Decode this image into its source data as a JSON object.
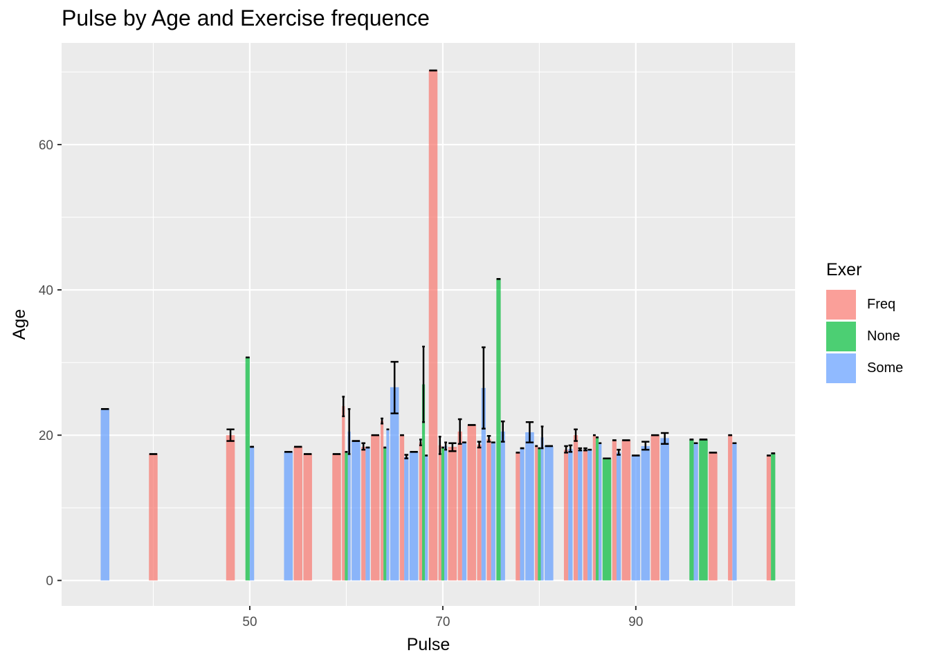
{
  "chart_data": {
    "type": "bar",
    "title": "Pulse by Age and Exercise frequence",
    "xlabel": "Pulse",
    "ylabel": "Age",
    "xlim": [
      30.5,
      106.5
    ],
    "ylim": [
      -3.5,
      74
    ],
    "x_ticks": [
      50,
      70,
      90
    ],
    "y_ticks": [
      0,
      20,
      40,
      60
    ],
    "grid": true,
    "legend": {
      "title": "Exer",
      "position": "right"
    },
    "series": [
      {
        "name": "Freq",
        "color": "#F8766D",
        "points": [
          {
            "x": 40,
            "y": 17.4,
            "err": [
              17.4,
              17.4
            ]
          },
          {
            "x": 48,
            "y": 20.0,
            "err": [
              19.2,
              20.8
            ]
          },
          {
            "x": 55,
            "y": 18.4,
            "err": [
              18.4,
              18.4
            ]
          },
          {
            "x": 56,
            "y": 17.4,
            "err": [
              17.4,
              17.4
            ]
          },
          {
            "x": 59,
            "y": 17.4,
            "err": [
              17.4,
              17.4
            ]
          },
          {
            "x": 60,
            "y": 24.0,
            "err": [
              22.6,
              25.3
            ]
          },
          {
            "x": 62,
            "y": 18.4,
            "err": [
              18.0,
              18.9
            ]
          },
          {
            "x": 63,
            "y": 20.0,
            "err": [
              20.0,
              20.0
            ]
          },
          {
            "x": 64,
            "y": 22.0,
            "err": [
              21.6,
              22.3
            ]
          },
          {
            "x": 66,
            "y": 20.0,
            "err": [
              20.0,
              20.0
            ]
          },
          {
            "x": 68,
            "y": 19.0,
            "err": [
              18.6,
              19.4
            ]
          },
          {
            "x": 69,
            "y": 70.2,
            "err": [
              70.2,
              70.2
            ]
          },
          {
            "x": 70,
            "y": 18.6,
            "err": [
              17.4,
              19.8
            ]
          },
          {
            "x": 71,
            "y": 18.4,
            "err": [
              17.8,
              18.9
            ]
          },
          {
            "x": 72,
            "y": 20.5,
            "err": [
              18.8,
              22.2
            ]
          },
          {
            "x": 73,
            "y": 21.4,
            "err": [
              21.4,
              21.4
            ]
          },
          {
            "x": 74,
            "y": 18.7,
            "err": [
              18.3,
              19.1
            ]
          },
          {
            "x": 75,
            "y": 19.5,
            "err": [
              19.1,
              19.9
            ]
          },
          {
            "x": 78,
            "y": 17.6,
            "err": [
              17.6,
              17.6
            ]
          },
          {
            "x": 80,
            "y": 18.5,
            "err": [
              18.5,
              18.5
            ]
          },
          {
            "x": 83,
            "y": 18.0,
            "err": [
              17.6,
              18.5
            ]
          },
          {
            "x": 84,
            "y": 20.0,
            "err": [
              19.2,
              20.8
            ]
          },
          {
            "x": 85,
            "y": 18.0,
            "err": [
              17.9,
              18.2
            ]
          },
          {
            "x": 86,
            "y": 20.0,
            "err": [
              20.0,
              20.0
            ]
          },
          {
            "x": 88,
            "y": 19.3,
            "err": [
              19.3,
              19.3
            ]
          },
          {
            "x": 89,
            "y": 19.3,
            "err": [
              19.3,
              19.3
            ]
          },
          {
            "x": 92,
            "y": 20.0,
            "err": [
              20.0,
              20.0
            ]
          },
          {
            "x": 98,
            "y": 17.6,
            "err": [
              17.6,
              17.6
            ]
          },
          {
            "x": 100,
            "y": 20.0,
            "err": [
              20.0,
              20.0
            ]
          },
          {
            "x": 104,
            "y": 17.2,
            "err": [
              17.2,
              17.2
            ]
          }
        ]
      },
      {
        "name": "None",
        "color": "#00BA38",
        "points": [
          {
            "x": 50,
            "y": 30.7,
            "err": [
              30.7,
              30.7
            ]
          },
          {
            "x": 60,
            "y": 17.7,
            "err": [
              17.7,
              17.7
            ]
          },
          {
            "x": 64,
            "y": 18.3,
            "err": [
              18.3,
              18.3
            ]
          },
          {
            "x": 68,
            "y": 27.0,
            "err": [
              21.8,
              32.2
            ]
          },
          {
            "x": 70,
            "y": 18.3,
            "err": [
              18.3,
              18.3
            ]
          },
          {
            "x": 76,
            "y": 41.5,
            "err": [
              41.5,
              41.5
            ]
          },
          {
            "x": 80,
            "y": 18.2,
            "err": [
              18.2,
              18.2
            ]
          },
          {
            "x": 86,
            "y": 19.7,
            "err": [
              19.7,
              19.7
            ]
          },
          {
            "x": 87,
            "y": 16.8,
            "err": [
              16.8,
              16.8
            ]
          },
          {
            "x": 96,
            "y": 19.4,
            "err": [
              19.4,
              19.4
            ]
          },
          {
            "x": 97,
            "y": 19.4,
            "err": [
              19.4,
              19.4
            ]
          },
          {
            "x": 104,
            "y": 17.5,
            "err": [
              17.5,
              17.5
            ]
          }
        ]
      },
      {
        "name": "Some",
        "color": "#619CFF",
        "points": [
          {
            "x": 35,
            "y": 23.6,
            "err": [
              23.6,
              23.6
            ]
          },
          {
            "x": 50,
            "y": 18.4,
            "err": [
              18.4,
              18.4
            ]
          },
          {
            "x": 54,
            "y": 17.7,
            "err": [
              17.7,
              17.7
            ]
          },
          {
            "x": 60,
            "y": 20.5,
            "err": [
              17.4,
              23.6
            ]
          },
          {
            "x": 61,
            "y": 19.2,
            "err": [
              19.2,
              19.2
            ]
          },
          {
            "x": 62,
            "y": 18.3,
            "err": [
              18.3,
              18.3
            ]
          },
          {
            "x": 64,
            "y": 20.8,
            "err": [
              20.8,
              20.8
            ]
          },
          {
            "x": 65,
            "y": 26.6,
            "err": [
              23.0,
              30.1
            ]
          },
          {
            "x": 66,
            "y": 17.0,
            "err": [
              16.8,
              17.3
            ]
          },
          {
            "x": 67,
            "y": 17.7,
            "err": [
              17.7,
              17.7
            ]
          },
          {
            "x": 68,
            "y": 17.2,
            "err": [
              17.2,
              17.2
            ]
          },
          {
            "x": 70,
            "y": 18.5,
            "err": [
              18.0,
              19.0
            ]
          },
          {
            "x": 72,
            "y": 19.0,
            "err": [
              19.0,
              19.0
            ]
          },
          {
            "x": 74,
            "y": 26.5,
            "err": [
              20.9,
              32.1
            ]
          },
          {
            "x": 75,
            "y": 19.0,
            "err": [
              19.0,
              19.0
            ]
          },
          {
            "x": 76,
            "y": 20.5,
            "err": [
              19.1,
              21.9
            ]
          },
          {
            "x": 78,
            "y": 18.2,
            "err": [
              18.2,
              18.2
            ]
          },
          {
            "x": 79,
            "y": 20.4,
            "err": [
              19.0,
              21.8
            ]
          },
          {
            "x": 80,
            "y": 19.7,
            "err": [
              18.2,
              21.2
            ]
          },
          {
            "x": 81,
            "y": 18.5,
            "err": [
              18.5,
              18.5
            ]
          },
          {
            "x": 83,
            "y": 18.1,
            "err": [
              17.7,
              18.6
            ]
          },
          {
            "x": 84,
            "y": 18.0,
            "err": [
              17.9,
              18.2
            ]
          },
          {
            "x": 85,
            "y": 18.0,
            "err": [
              18.0,
              18.0
            ]
          },
          {
            "x": 86,
            "y": 18.9,
            "err": [
              18.9,
              18.9
            ]
          },
          {
            "x": 88,
            "y": 17.6,
            "err": [
              17.3,
              18.0
            ]
          },
          {
            "x": 90,
            "y": 17.2,
            "err": [
              17.2,
              17.2
            ]
          },
          {
            "x": 91,
            "y": 18.5,
            "err": [
              18.0,
              19.1
            ]
          },
          {
            "x": 93,
            "y": 19.6,
            "err": [
              18.8,
              20.3
            ]
          },
          {
            "x": 96,
            "y": 18.9,
            "err": [
              18.9,
              18.9
            ]
          },
          {
            "x": 100,
            "y": 18.9,
            "err": [
              18.9,
              18.9
            ]
          }
        ]
      }
    ]
  }
}
